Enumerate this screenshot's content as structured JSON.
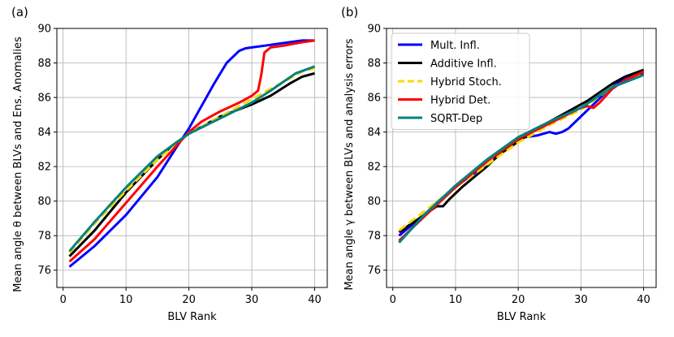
{
  "chart_data": [
    {
      "type": "line",
      "panel_label": "(a)",
      "xlabel": "BLV Rank",
      "ylabel": "Mean angle θ between BLVs and Ens. Anomalies",
      "xlim": [
        -1,
        42
      ],
      "ylim": [
        75,
        90
      ],
      "xticks": [
        0,
        10,
        20,
        30,
        40
      ],
      "yticks": [
        76,
        78,
        80,
        82,
        84,
        86,
        88,
        90
      ],
      "grid": true,
      "series": [
        {
          "name": "Mult. Infl.",
          "color": "#0000ff",
          "dashed": false,
          "x": [
            1,
            5,
            10,
            15,
            18,
            20,
            22,
            24,
            26,
            28,
            29,
            30,
            32,
            34,
            36,
            38,
            40
          ],
          "y": [
            76.2,
            77.4,
            79.2,
            81.4,
            83.1,
            84.2,
            85.5,
            86.8,
            88.0,
            88.7,
            88.85,
            88.9,
            89.0,
            89.1,
            89.2,
            89.3,
            89.3
          ]
        },
        {
          "name": "Additive Infl.",
          "color": "#000000",
          "dashed": false,
          "x": [
            1,
            5,
            10,
            15,
            17,
            20,
            25,
            30,
            33,
            36,
            38,
            40
          ],
          "y": [
            76.8,
            78.3,
            80.5,
            82.4,
            83.1,
            83.9,
            84.9,
            85.6,
            86.1,
            86.8,
            87.2,
            87.4
          ]
        },
        {
          "name": "Hybrid Stoch.",
          "color": "#ffd700",
          "dashed": true,
          "x": [
            1,
            5,
            10,
            15,
            18,
            20,
            25,
            30,
            33,
            35,
            38,
            40
          ],
          "y": [
            77.0,
            78.7,
            80.6,
            82.4,
            83.3,
            83.9,
            84.9,
            85.9,
            86.5,
            86.9,
            87.5,
            87.7
          ]
        },
        {
          "name": "Hybrid Det.",
          "color": "#ff0000",
          "dashed": false,
          "x": [
            1,
            5,
            10,
            15,
            18,
            20,
            22,
            25,
            28,
            30,
            31,
            31.5,
            32,
            33,
            35,
            38,
            40
          ],
          "y": [
            76.5,
            77.8,
            79.9,
            82.0,
            83.2,
            84.0,
            84.6,
            85.2,
            85.7,
            86.1,
            86.4,
            87.3,
            88.6,
            88.9,
            89.0,
            89.2,
            89.3
          ]
        },
        {
          "name": "SQRT-Dep",
          "color": "#008080",
          "dashed": false,
          "x": [
            1,
            5,
            10,
            15,
            18,
            20,
            25,
            30,
            33,
            35,
            37,
            40
          ],
          "y": [
            77.1,
            78.8,
            80.8,
            82.6,
            83.4,
            83.9,
            84.8,
            85.7,
            86.4,
            86.9,
            87.4,
            87.8
          ]
        }
      ]
    },
    {
      "type": "line",
      "panel_label": "(b)",
      "xlabel": "BLV Rank",
      "ylabel": "Mean angle γ between BLVs and analysis errors",
      "xlim": [
        -1,
        42
      ],
      "ylim": [
        75,
        90
      ],
      "xticks": [
        0,
        10,
        20,
        30,
        40
      ],
      "yticks": [
        76,
        78,
        80,
        82,
        84,
        86,
        88,
        90
      ],
      "grid": true,
      "legend": "top-left",
      "series": [
        {
          "name": "Mult. Infl.",
          "color": "#0000ff",
          "dashed": false,
          "x": [
            1,
            3,
            5,
            7,
            9,
            11,
            13,
            15,
            17,
            19,
            21,
            23,
            24,
            25,
            26,
            27,
            28,
            30,
            32,
            34,
            36,
            38,
            40
          ],
          "y": [
            78.0,
            78.6,
            79.2,
            79.9,
            80.5,
            81.1,
            81.6,
            82.3,
            82.9,
            83.4,
            83.7,
            83.8,
            83.9,
            84.0,
            83.9,
            84.0,
            84.2,
            84.9,
            85.6,
            86.3,
            86.9,
            87.2,
            87.4
          ]
        },
        {
          "name": "Additive Infl.",
          "color": "#000000",
          "dashed": false,
          "x": [
            1,
            3,
            5,
            7,
            8,
            9,
            11,
            13,
            15,
            17,
            19,
            21,
            23,
            25,
            27,
            29,
            31,
            33,
            35,
            37,
            40
          ],
          "y": [
            78.2,
            78.7,
            79.2,
            79.7,
            79.7,
            80.1,
            80.8,
            81.4,
            82.0,
            82.7,
            83.2,
            83.7,
            84.2,
            84.6,
            85.0,
            85.4,
            85.8,
            86.3,
            86.8,
            87.2,
            87.6
          ]
        },
        {
          "name": "Hybrid Stoch.",
          "color": "#ffd700",
          "dashed": true,
          "x": [
            1,
            5,
            10,
            15,
            20,
            25,
            30,
            35,
            40
          ],
          "y": [
            78.3,
            79.4,
            80.8,
            82.1,
            83.4,
            84.4,
            85.3,
            86.6,
            87.4
          ]
        },
        {
          "name": "Hybrid Det.",
          "color": "#ff0000",
          "dashed": false,
          "x": [
            1,
            5,
            10,
            15,
            20,
            25,
            30,
            31,
            32,
            33,
            35,
            37,
            40
          ],
          "y": [
            77.7,
            79.1,
            80.8,
            82.3,
            83.6,
            84.5,
            85.4,
            85.5,
            85.4,
            85.7,
            86.5,
            87.0,
            87.5
          ]
        },
        {
          "name": "SQRT-Dep",
          "color": "#008080",
          "dashed": false,
          "x": [
            1,
            5,
            10,
            15,
            20,
            25,
            30,
            35,
            40
          ],
          "y": [
            77.6,
            79.2,
            80.9,
            82.4,
            83.7,
            84.6,
            85.4,
            86.6,
            87.3
          ]
        }
      ]
    }
  ]
}
